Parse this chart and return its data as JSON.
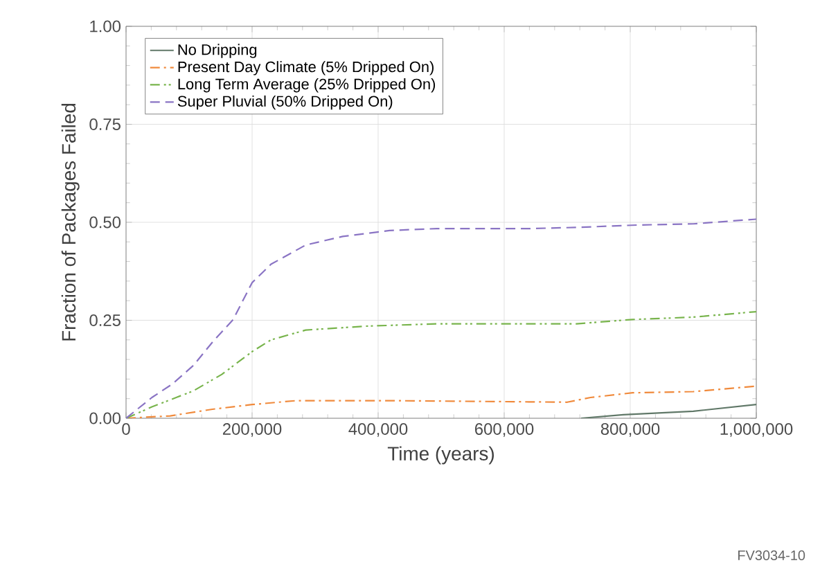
{
  "chart_data": {
    "type": "line",
    "xlabel": "Time (years)",
    "ylabel": "Fraction of Packages Failed",
    "xlim": [
      0,
      1000000
    ],
    "ylim": [
      0,
      1
    ],
    "xticks": [
      0,
      {
        "value": 200000,
        "label": "200,000"
      },
      {
        "value": 400000,
        "label": "400,000"
      },
      {
        "value": 600000,
        "label": "600,000"
      },
      {
        "value": 800000,
        "label": "800,000"
      },
      {
        "value": 1000000,
        "label": "1,000,000"
      }
    ],
    "yticks": [
      {
        "value": 0,
        "label": "0.00"
      },
      {
        "value": 0.25,
        "label": "0.25"
      },
      {
        "value": 0.5,
        "label": "0.50"
      },
      {
        "value": 0.75,
        "label": "0.75"
      },
      {
        "value": 1,
        "label": "1.00"
      }
    ],
    "grid": true,
    "legend": "top left",
    "series": [
      {
        "name": "No Dripping",
        "color": "#607868",
        "line_style": "solid",
        "x": [
          722000,
          789000,
          900000,
          1000000
        ],
        "values": [
          0,
          0.009,
          0.018,
          0.035
        ]
      },
      {
        "name": "Present Day Climate (5% Dripped On)",
        "color": "#f08a3c",
        "line_style": "dashdot",
        "x": [
          0,
          70000,
          137000,
          200000,
          270000,
          418000,
          700000,
          737000,
          804000,
          900000,
          1000000
        ],
        "values": [
          0,
          0.006,
          0.023,
          0.035,
          0.045,
          0.045,
          0.041,
          0.053,
          0.065,
          0.068,
          0.082
        ]
      },
      {
        "name": "Long Term Average (25% Dripped On)",
        "color": "#78b44c",
        "line_style": "dashdotdot",
        "x": [
          0,
          41000,
          107000,
          152000,
          200000,
          230000,
          285000,
          381000,
          493000,
          715000,
          804000,
          900000,
          1000000
        ],
        "values": [
          0,
          0.029,
          0.07,
          0.112,
          0.17,
          0.2,
          0.225,
          0.235,
          0.241,
          0.241,
          0.252,
          0.258,
          0.272
        ]
      },
      {
        "name": "Super Pluvial (50% Dripped On)",
        "color": "#8a74c4",
        "line_style": "dashed",
        "x": [
          0,
          41000,
          74000,
          107000,
          137000,
          170000,
          200000,
          230000,
          285000,
          344000,
          418000,
          493000,
          641000,
          715000,
          811000,
          900000,
          1000000
        ],
        "values": [
          0,
          0.053,
          0.088,
          0.135,
          0.194,
          0.252,
          0.346,
          0.393,
          0.442,
          0.464,
          0.479,
          0.484,
          0.484,
          0.487,
          0.493,
          0.496,
          0.508
        ]
      }
    ],
    "annotations": [
      "FV3034-10"
    ]
  }
}
